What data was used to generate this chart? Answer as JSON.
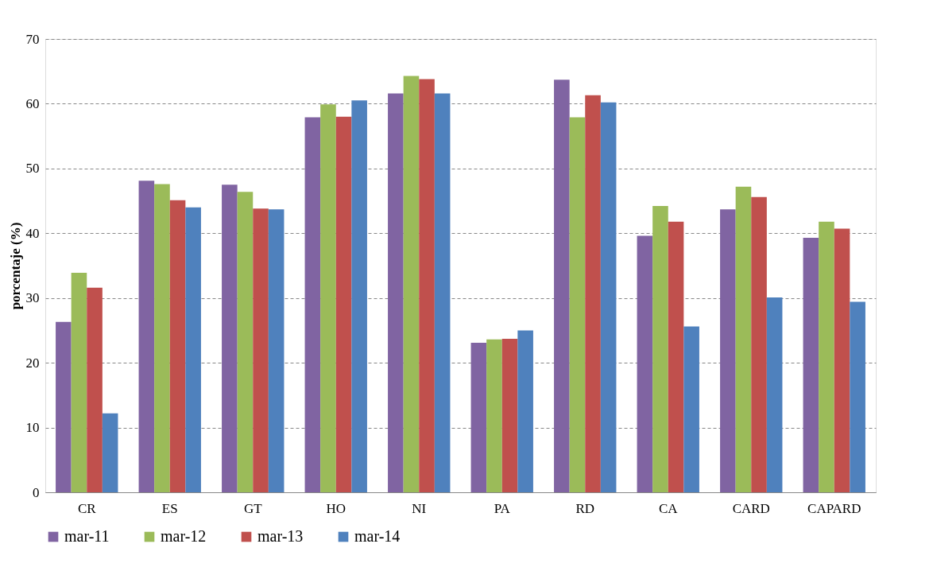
{
  "chart_data": {
    "type": "bar",
    "ylabel": "porcentaje (%)",
    "categories": [
      "CR",
      "ES",
      "GT",
      "HO",
      "NI",
      "PA",
      "RD",
      "CA",
      "CARD",
      "CAPARD"
    ],
    "series": [
      {
        "name": "mar-11",
        "color": "#8064a2",
        "values": [
          26.3,
          48.1,
          47.5,
          57.9,
          61.6,
          23.1,
          63.7,
          39.6,
          43.7,
          39.3
        ]
      },
      {
        "name": "mar-12",
        "color": "#9bbb59",
        "values": [
          33.9,
          47.6,
          46.4,
          59.9,
          64.3,
          23.6,
          57.9,
          44.2,
          47.2,
          41.8
        ]
      },
      {
        "name": "mar-13",
        "color": "#c0504d",
        "values": [
          31.6,
          45.1,
          43.8,
          58.0,
          63.8,
          23.7,
          61.3,
          41.8,
          45.6,
          40.7
        ]
      },
      {
        "name": "mar-14",
        "color": "#4f81bd",
        "values": [
          12.2,
          44.0,
          43.7,
          60.5,
          61.6,
          25.0,
          60.2,
          25.6,
          30.1,
          29.4
        ]
      }
    ],
    "ylim": [
      0,
      70
    ],
    "yticks": [
      0,
      10,
      20,
      30,
      40,
      50,
      60,
      70
    ],
    "grid": "y",
    "legend": "bottom"
  }
}
